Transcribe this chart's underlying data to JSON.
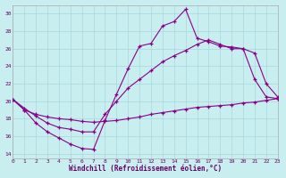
{
  "xlabel": "Windchill (Refroidissement éolien,°C)",
  "xlim": [
    0,
    23
  ],
  "ylim": [
    13.5,
    31.0
  ],
  "yticks": [
    14,
    16,
    18,
    20,
    22,
    24,
    26,
    28,
    30
  ],
  "xticks": [
    0,
    1,
    2,
    3,
    4,
    5,
    6,
    7,
    8,
    9,
    10,
    11,
    12,
    13,
    14,
    15,
    16,
    17,
    18,
    19,
    20,
    21,
    22,
    23
  ],
  "bg_color": "#c8eef0",
  "line_color": "#880088",
  "grid_color": "#a8d8dc",
  "s1_x": [
    0,
    1,
    2,
    3,
    4,
    5,
    6,
    7,
    8,
    9,
    10,
    11,
    12,
    13,
    14,
    15,
    16,
    17,
    18,
    19,
    20,
    21,
    22,
    23
  ],
  "s1_y": [
    20.2,
    19.0,
    17.5,
    16.5,
    15.8,
    15.1,
    14.6,
    14.5,
    17.8,
    20.8,
    23.7,
    26.3,
    26.6,
    28.6,
    29.1,
    30.5,
    27.2,
    26.8,
    26.3,
    26.2,
    26.0,
    22.5,
    20.5,
    20.3
  ],
  "s2_x": [
    0,
    1,
    2,
    3,
    4,
    5,
    6,
    7,
    8,
    9,
    10,
    11,
    12,
    13,
    14,
    15,
    16,
    17,
    18,
    19,
    20,
    21,
    22,
    23
  ],
  "s2_y": [
    20.2,
    19.2,
    18.3,
    17.5,
    17.0,
    16.8,
    16.5,
    16.5,
    18.5,
    20.0,
    21.5,
    22.5,
    23.5,
    24.5,
    25.2,
    25.8,
    26.5,
    27.0,
    26.5,
    26.0,
    26.0,
    25.5,
    22.0,
    20.5
  ],
  "s3_x": [
    0,
    1,
    2,
    3,
    4,
    5,
    6,
    7,
    8,
    9,
    10,
    11,
    12,
    13,
    14,
    15,
    16,
    17,
    18,
    19,
    20,
    21,
    22,
    23
  ],
  "s3_y": [
    20.2,
    19.0,
    18.5,
    18.2,
    18.0,
    17.9,
    17.7,
    17.6,
    17.7,
    17.8,
    18.0,
    18.2,
    18.5,
    18.7,
    18.9,
    19.1,
    19.3,
    19.4,
    19.5,
    19.6,
    19.8,
    19.9,
    20.1,
    20.3
  ]
}
